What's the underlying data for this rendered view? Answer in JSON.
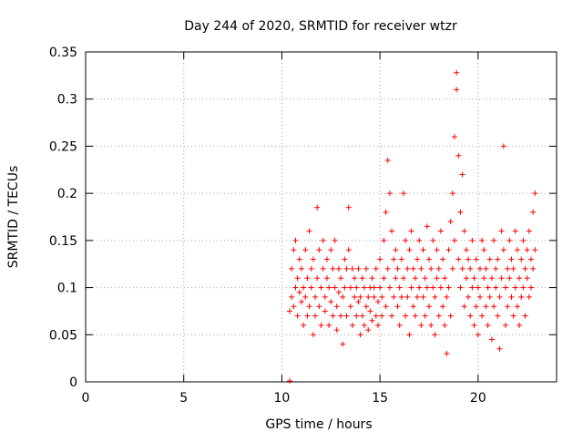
{
  "chart_data": {
    "type": "scatter",
    "title": "Day 244 of 2020, SRMTID for receiver wtzr",
    "xlabel": "GPS time / hours",
    "ylabel": "SRMTID / TECUs",
    "xlim": [
      0,
      24
    ],
    "ylim": [
      0,
      0.35
    ],
    "xticks": [
      0,
      5,
      10,
      15,
      20
    ],
    "yticks": [
      0,
      0.05,
      0.1,
      0.15,
      0.2,
      0.25,
      0.3,
      0.35
    ],
    "xtick_labels": [
      "0",
      "5",
      "10",
      "15",
      "20"
    ],
    "ytick_labels": [
      "0",
      "0.05",
      "0.1",
      "0.15",
      "0.2",
      "0.25",
      "0.3",
      "0.35"
    ],
    "grid": true,
    "marker": "+",
    "color": "#ff0000",
    "series": [
      {
        "name": "SRMTID",
        "points": [
          [
            10.4,
            0.001
          ],
          [
            10.4,
            0.075
          ],
          [
            10.5,
            0.12
          ],
          [
            10.5,
            0.09
          ],
          [
            10.6,
            0.14
          ],
          [
            10.6,
            0.08
          ],
          [
            10.7,
            0.1
          ],
          [
            10.7,
            0.15
          ],
          [
            10.8,
            0.11
          ],
          [
            10.8,
            0.07
          ],
          [
            10.9,
            0.13
          ],
          [
            10.9,
            0.095
          ],
          [
            11.0,
            0.085
          ],
          [
            11.0,
            0.12
          ],
          [
            11.1,
            0.06
          ],
          [
            11.1,
            0.1
          ],
          [
            11.2,
            0.14
          ],
          [
            11.2,
            0.09
          ],
          [
            11.3,
            0.07
          ],
          [
            11.3,
            0.11
          ],
          [
            11.4,
            0.16
          ],
          [
            11.4,
            0.08
          ],
          [
            11.5,
            0.12
          ],
          [
            11.5,
            0.1
          ],
          [
            11.6,
            0.05
          ],
          [
            11.6,
            0.13
          ],
          [
            11.7,
            0.09
          ],
          [
            11.7,
            0.07
          ],
          [
            11.8,
            0.185
          ],
          [
            11.8,
            0.11
          ],
          [
            11.9,
            0.08
          ],
          [
            11.9,
            0.14
          ],
          [
            12.0,
            0.1
          ],
          [
            12.0,
            0.06
          ],
          [
            12.1,
            0.12
          ],
          [
            12.1,
            0.15
          ],
          [
            12.2,
            0.09
          ],
          [
            12.2,
            0.075
          ],
          [
            12.3,
            0.11
          ],
          [
            12.3,
            0.13
          ],
          [
            12.4,
            0.06
          ],
          [
            12.4,
            0.1
          ],
          [
            12.5,
            0.14
          ],
          [
            12.5,
            0.085
          ],
          [
            12.6,
            0.12
          ],
          [
            12.6,
            0.07
          ],
          [
            12.7,
            0.1
          ],
          [
            12.7,
            0.15
          ],
          [
            12.8,
            0.08
          ],
          [
            12.8,
            0.055
          ],
          [
            12.9,
            0.12
          ],
          [
            12.9,
            0.095
          ],
          [
            13.0,
            0.07
          ],
          [
            13.0,
            0.11
          ],
          [
            13.1,
            0.04
          ],
          [
            13.1,
            0.09
          ],
          [
            13.2,
            0.13
          ],
          [
            13.2,
            0.1
          ],
          [
            13.3,
            0.07
          ],
          [
            13.3,
            0.12
          ],
          [
            13.4,
            0.185
          ],
          [
            13.4,
            0.14
          ],
          [
            13.5,
            0.1
          ],
          [
            13.5,
            0.08
          ],
          [
            13.6,
            0.12
          ],
          [
            13.6,
            0.06
          ],
          [
            13.7,
            0.09
          ],
          [
            13.7,
            0.11
          ],
          [
            13.8,
            0.07
          ],
          [
            13.8,
            0.1
          ],
          [
            13.9,
            0.085
          ],
          [
            13.9,
            0.12
          ],
          [
            14.0,
            0.05
          ],
          [
            14.0,
            0.09
          ],
          [
            14.1,
            0.11
          ],
          [
            14.1,
            0.07
          ],
          [
            14.2,
            0.1
          ],
          [
            14.2,
            0.06
          ],
          [
            14.3,
            0.08
          ],
          [
            14.3,
            0.12
          ],
          [
            14.4,
            0.09
          ],
          [
            14.4,
            0.055
          ],
          [
            14.5,
            0.1
          ],
          [
            14.5,
            0.075
          ],
          [
            14.6,
            0.11
          ],
          [
            14.6,
            0.065
          ],
          [
            14.7,
            0.09
          ],
          [
            14.7,
            0.1
          ],
          [
            14.8,
            0.07
          ],
          [
            14.8,
            0.12
          ],
          [
            14.9,
            0.085
          ],
          [
            14.9,
            0.06
          ],
          [
            15.0,
            0.1
          ],
          [
            15.0,
            0.13
          ],
          [
            15.1,
            0.09
          ],
          [
            15.1,
            0.07
          ],
          [
            15.2,
            0.15
          ],
          [
            15.2,
            0.11
          ],
          [
            15.3,
            0.18
          ],
          [
            15.3,
            0.08
          ],
          [
            15.4,
            0.235
          ],
          [
            15.4,
            0.12
          ],
          [
            15.5,
            0.2
          ],
          [
            15.5,
            0.1
          ],
          [
            15.6,
            0.16
          ],
          [
            15.6,
            0.07
          ],
          [
            15.7,
            0.13
          ],
          [
            15.7,
            0.09
          ],
          [
            15.8,
            0.11
          ],
          [
            15.8,
            0.14
          ],
          [
            15.9,
            0.08
          ],
          [
            15.9,
            0.12
          ],
          [
            16.0,
            0.1
          ],
          [
            16.0,
            0.06
          ],
          [
            16.1,
            0.13
          ],
          [
            16.1,
            0.09
          ],
          [
            16.2,
            0.2
          ],
          [
            16.2,
            0.11
          ],
          [
            16.3,
            0.15
          ],
          [
            16.3,
            0.07
          ],
          [
            16.4,
            0.12
          ],
          [
            16.4,
            0.09
          ],
          [
            16.5,
            0.14
          ],
          [
            16.5,
            0.05
          ],
          [
            16.6,
            0.1
          ],
          [
            16.6,
            0.16
          ],
          [
            16.7,
            0.08
          ],
          [
            16.7,
            0.12
          ],
          [
            16.8,
            0.11
          ],
          [
            16.8,
            0.07
          ],
          [
            16.9,
            0.13
          ],
          [
            16.9,
            0.09
          ],
          [
            17.0,
            0.1
          ],
          [
            17.0,
            0.15
          ],
          [
            17.1,
            0.06
          ],
          [
            17.1,
            0.12
          ],
          [
            17.2,
            0.09
          ],
          [
            17.2,
            0.14
          ],
          [
            17.3,
            0.11
          ],
          [
            17.3,
            0.07
          ],
          [
            17.4,
            0.165
          ],
          [
            17.4,
            0.1
          ],
          [
            17.5,
            0.08
          ],
          [
            17.5,
            0.13
          ],
          [
            17.6,
            0.12
          ],
          [
            17.6,
            0.06
          ],
          [
            17.7,
            0.1
          ],
          [
            17.7,
            0.15
          ],
          [
            17.8,
            0.09
          ],
          [
            17.8,
            0.05
          ],
          [
            17.9,
            0.11
          ],
          [
            17.9,
            0.14
          ],
          [
            18.0,
            0.07
          ],
          [
            18.0,
            0.12
          ],
          [
            18.1,
            0.1
          ],
          [
            18.1,
            0.16
          ],
          [
            18.2,
            0.08
          ],
          [
            18.2,
            0.13
          ],
          [
            18.3,
            0.06
          ],
          [
            18.3,
            0.11
          ],
          [
            18.4,
            0.03
          ],
          [
            18.4,
            0.09
          ],
          [
            18.5,
            0.14
          ],
          [
            18.5,
            0.1
          ],
          [
            18.6,
            0.17
          ],
          [
            18.6,
            0.07
          ],
          [
            18.7,
            0.12
          ],
          [
            18.7,
            0.2
          ],
          [
            18.8,
            0.26
          ],
          [
            18.8,
            0.15
          ],
          [
            18.9,
            0.328
          ],
          [
            18.9,
            0.31
          ],
          [
            19.0,
            0.24
          ],
          [
            19.0,
            0.13
          ],
          [
            19.1,
            0.18
          ],
          [
            19.1,
            0.1
          ],
          [
            19.2,
            0.22
          ],
          [
            19.2,
            0.12
          ],
          [
            19.3,
            0.16
          ],
          [
            19.3,
            0.08
          ],
          [
            19.4,
            0.14
          ],
          [
            19.4,
            0.11
          ],
          [
            19.5,
            0.09
          ],
          [
            19.5,
            0.13
          ],
          [
            19.6,
            0.07
          ],
          [
            19.6,
            0.12
          ],
          [
            19.7,
            0.1
          ],
          [
            19.7,
            0.15
          ],
          [
            19.8,
            0.06
          ],
          [
            19.8,
            0.11
          ],
          [
            19.9,
            0.08
          ],
          [
            19.9,
            0.13
          ],
          [
            20.0,
            0.1
          ],
          [
            20.0,
            0.05
          ],
          [
            20.1,
            0.12
          ],
          [
            20.1,
            0.09
          ],
          [
            20.2,
            0.15
          ],
          [
            20.2,
            0.07
          ],
          [
            20.3,
            0.11
          ],
          [
            20.3,
            0.14
          ],
          [
            20.4,
            0.08
          ],
          [
            20.4,
            0.12
          ],
          [
            20.5,
            0.1
          ],
          [
            20.5,
            0.06
          ],
          [
            20.6,
            0.13
          ],
          [
            20.6,
            0.09
          ],
          [
            20.7,
            0.045
          ],
          [
            20.7,
            0.11
          ],
          [
            20.8,
            0.15
          ],
          [
            20.8,
            0.08
          ],
          [
            20.9,
            0.12
          ],
          [
            20.9,
            0.1
          ],
          [
            21.0,
            0.07
          ],
          [
            21.0,
            0.13
          ],
          [
            21.1,
            0.035
          ],
          [
            21.1,
            0.09
          ],
          [
            21.2,
            0.11
          ],
          [
            21.2,
            0.16
          ],
          [
            21.3,
            0.25
          ],
          [
            21.3,
            0.14
          ],
          [
            21.4,
            0.1
          ],
          [
            21.4,
            0.06
          ],
          [
            21.5,
            0.12
          ],
          [
            21.5,
            0.08
          ],
          [
            21.6,
            0.15
          ],
          [
            21.6,
            0.11
          ],
          [
            21.7,
            0.09
          ],
          [
            21.7,
            0.13
          ],
          [
            21.8,
            0.07
          ],
          [
            21.8,
            0.12
          ],
          [
            21.9,
            0.1
          ],
          [
            21.9,
            0.16
          ],
          [
            22.0,
            0.08
          ],
          [
            22.0,
            0.14
          ],
          [
            22.1,
            0.11
          ],
          [
            22.1,
            0.06
          ],
          [
            22.2,
            0.13
          ],
          [
            22.2,
            0.09
          ],
          [
            22.3,
            0.15
          ],
          [
            22.3,
            0.1
          ],
          [
            22.4,
            0.12
          ],
          [
            22.4,
            0.07
          ],
          [
            22.5,
            0.14
          ],
          [
            22.5,
            0.11
          ],
          [
            22.6,
            0.09
          ],
          [
            22.6,
            0.16
          ],
          [
            22.7,
            0.13
          ],
          [
            22.7,
            0.1
          ],
          [
            22.8,
            0.18
          ],
          [
            22.8,
            0.12
          ],
          [
            22.9,
            0.2
          ],
          [
            22.9,
            0.14
          ]
        ]
      }
    ]
  }
}
